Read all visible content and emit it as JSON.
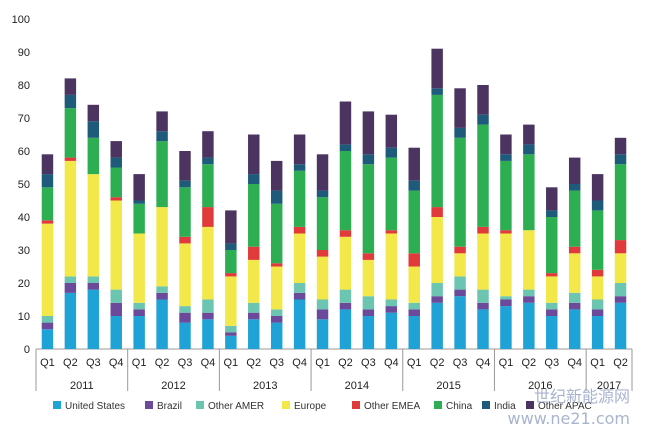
{
  "chart_data": {
    "type": "bar",
    "stacked": true,
    "title": "",
    "xlabel": "",
    "ylabel": "",
    "ylim": [
      0,
      100
    ],
    "yticks": [
      0,
      10,
      20,
      30,
      40,
      50,
      60,
      70,
      80,
      90,
      100
    ],
    "grid": false,
    "legend_position": "bottom",
    "categories": [
      "Q1",
      "Q2",
      "Q3",
      "Q4",
      "Q1",
      "Q2",
      "Q3",
      "Q4",
      "Q1",
      "Q2",
      "Q3",
      "Q4",
      "Q1",
      "Q2",
      "Q3",
      "Q4",
      "Q1",
      "Q2",
      "Q3",
      "Q4",
      "Q1",
      "Q2",
      "Q3",
      "Q4",
      "Q1",
      "Q2"
    ],
    "years": [
      {
        "label": "2011",
        "count": 4
      },
      {
        "label": "2012",
        "count": 4
      },
      {
        "label": "2013",
        "count": 4
      },
      {
        "label": "2014",
        "count": 4
      },
      {
        "label": "2015",
        "count": 4
      },
      {
        "label": "2016",
        "count": 4
      },
      {
        "label": "2017",
        "count": 2
      }
    ],
    "series": [
      {
        "name": "United States",
        "color": "#1fa2d6",
        "values": [
          6,
          17,
          18,
          10,
          10,
          15,
          8,
          9,
          4,
          9,
          8,
          15,
          9,
          12,
          10,
          11,
          10,
          14,
          16,
          12,
          13,
          14,
          10,
          12,
          10,
          14
        ]
      },
      {
        "name": "Brazil",
        "color": "#6b4a9b",
        "values": [
          2,
          3,
          2,
          4,
          2,
          2,
          3,
          2,
          1,
          2,
          2,
          2,
          3,
          2,
          2,
          2,
          2,
          2,
          2,
          2,
          2,
          2,
          2,
          2,
          2,
          2
        ]
      },
      {
        "name": "Other AMER",
        "color": "#6cc5b0",
        "values": [
          2,
          2,
          2,
          4,
          2,
          2,
          2,
          4,
          2,
          3,
          2,
          3,
          3,
          4,
          4,
          2,
          2,
          4,
          4,
          4,
          1,
          2,
          2,
          3,
          3,
          4
        ]
      },
      {
        "name": "Europe",
        "color": "#f2e84a",
        "values": [
          28,
          35,
          31,
          27,
          21,
          24,
          19,
          22,
          15,
          13,
          13,
          15,
          13,
          16,
          11,
          20,
          11,
          20,
          7,
          17,
          19,
          18,
          8,
          12,
          7,
          9
        ]
      },
      {
        "name": "Other EMEA",
        "color": "#e03a3a",
        "values": [
          1,
          1,
          0,
          1,
          0,
          0,
          2,
          6,
          1,
          4,
          1,
          2,
          2,
          2,
          2,
          1,
          4,
          3,
          2,
          2,
          1,
          0,
          1,
          2,
          2,
          4
        ]
      },
      {
        "name": "China",
        "color": "#2eae52",
        "values": [
          10,
          15,
          11,
          9,
          9,
          20,
          15,
          13,
          7,
          19,
          18,
          17,
          16,
          24,
          27,
          22,
          19,
          34,
          33,
          31,
          21,
          23,
          17,
          17,
          18,
          23
        ]
      },
      {
        "name": "India",
        "color": "#1e5a7a",
        "values": [
          4,
          4,
          5,
          3,
          1,
          3,
          2,
          2,
          2,
          3,
          4,
          2,
          2,
          2,
          3,
          3,
          3,
          2,
          3,
          3,
          2,
          3,
          2,
          2,
          3,
          3
        ]
      },
      {
        "name": "Other APAC",
        "color": "#4b3560",
        "values": [
          6,
          5,
          5,
          5,
          8,
          6,
          9,
          8,
          10,
          12,
          9,
          9,
          11,
          13,
          13,
          10,
          10,
          12,
          12,
          9,
          6,
          6,
          7,
          8,
          8,
          5
        ]
      }
    ]
  },
  "watermark": "世纪新能源网 www.ne21.com"
}
